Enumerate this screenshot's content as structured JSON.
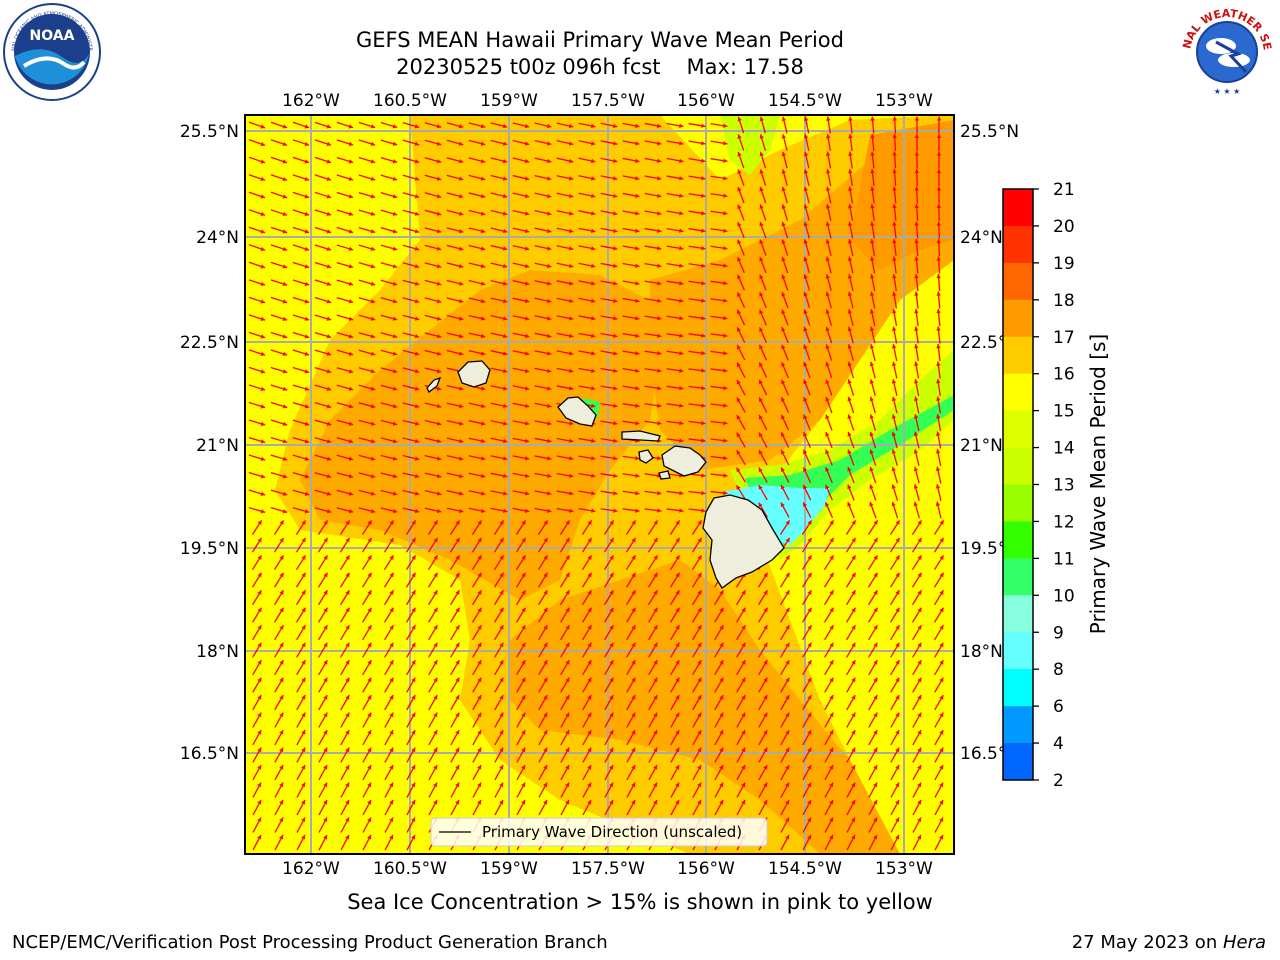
{
  "title": {
    "line1": "GEFS MEAN Hawaii Primary Wave Mean Period",
    "line2_date": "20230525 t00z 096h fcst",
    "line2_max": "Max: 17.58"
  },
  "map": {
    "lon_labels": [
      "162°W",
      "160.5°W",
      "159°W",
      "157.5°W",
      "156°W",
      "154.5°W",
      "153°W"
    ],
    "lat_labels": [
      "25.5°N",
      "24°N",
      "22.5°N",
      "21°N",
      "19.5°N",
      "18°N",
      "16.5°N"
    ],
    "legend_label": "Primary Wave Direction (unscaled)",
    "colors": {
      "yellow": "#ffff00",
      "gold": "#ffcc00",
      "orange": "#ffaa00",
      "dark_orange": "#ff9900",
      "lime": "#ccff00",
      "green": "#33ff55",
      "cyan": "#66ffff",
      "arrow": "#ff0000",
      "land": "#eeeedd",
      "grid": "#aaaaaa"
    }
  },
  "colorbar": {
    "label": "Primary Wave Mean Period [s]",
    "ticks": [
      "21",
      "20",
      "19",
      "18",
      "17",
      "16",
      "15",
      "14",
      "13",
      "12",
      "11",
      "10",
      "9",
      "8",
      "6",
      "4",
      "2"
    ],
    "colors": [
      "#ff0000",
      "#ff3300",
      "#ff6600",
      "#ff9900",
      "#ffcc00",
      "#ffff00",
      "#ddff00",
      "#ccff00",
      "#99ff00",
      "#33ff00",
      "#33ff66",
      "#88ffdd",
      "#66ffff",
      "#00ffff",
      "#0099ff",
      "#0066ff",
      "#0000ff"
    ]
  },
  "subcaption": "Sea Ice Concentration > 15% is shown in pink to yellow",
  "footer": {
    "left": "NCEP/EMC/Verification Post Processing Product Generation Branch",
    "right_prefix": "27 May 2023 on ",
    "right_host": "Hera"
  },
  "logos": {
    "noaa_text": "NOAA",
    "nws_text": "NATIONAL WEATHER SERVICE"
  }
}
